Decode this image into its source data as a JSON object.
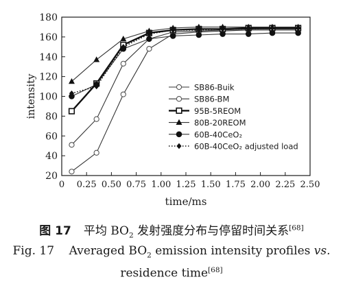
{
  "chart_data": {
    "type": "line",
    "title": "",
    "xlabel": "time/ms",
    "ylabel": "intensity",
    "xlim": [
      0,
      2.5
    ],
    "ylim": [
      20,
      180
    ],
    "xticks": [
      "0",
      "0.25",
      "0.50",
      "0.75",
      "1.00",
      "1.25",
      "1.50",
      "1.75",
      "2.00",
      "2.25",
      "2.50"
    ],
    "yticks": [
      "20",
      "40",
      "60",
      "80",
      "100",
      "120",
      "140",
      "160",
      "180"
    ],
    "grid": false,
    "legend_position": "right",
    "series": [
      {
        "name": "SB86-Buik",
        "marker": "circle-open",
        "line": "solid-thin",
        "x": [
          0.1,
          0.35,
          0.62,
          0.88,
          1.12,
          1.38,
          1.62,
          1.88,
          2.12,
          2.38
        ],
        "y": [
          24,
          43,
          102,
          148,
          163,
          165,
          166,
          167,
          167,
          167
        ]
      },
      {
        "name": "SB86-BM",
        "marker": "circle-open",
        "line": "solid-thin",
        "x": [
          0.1,
          0.35,
          0.62,
          0.88,
          1.12,
          1.38,
          1.62,
          1.88,
          2.12,
          2.38
        ],
        "y": [
          51,
          77,
          133,
          158,
          165,
          166,
          167,
          168,
          168,
          168
        ]
      },
      {
        "name": "95B-5REOM",
        "marker": "square-open",
        "line": "solid-thick",
        "x": [
          0.1,
          0.35,
          0.62,
          0.88,
          1.12,
          1.38,
          1.62,
          1.88,
          2.12,
          2.38
        ],
        "y": [
          85,
          113,
          152,
          164,
          167,
          168,
          168,
          169,
          169,
          169
        ]
      },
      {
        "name": "80B-20REOM",
        "marker": "triangle-filled",
        "line": "solid-thin",
        "x": [
          0.1,
          0.35,
          0.62,
          0.88,
          1.12,
          1.38,
          1.62,
          1.88,
          2.12,
          2.38
        ],
        "y": [
          115,
          137,
          158,
          166,
          169,
          170,
          170,
          170,
          170,
          170
        ]
      },
      {
        "name": "60B-40CeO₂",
        "marker": "circle-filled",
        "line": "solid-thin",
        "x": [
          0.1,
          0.35,
          0.62,
          0.88,
          1.12,
          1.38,
          1.62,
          1.88,
          2.12,
          2.38
        ],
        "y": [
          100,
          112,
          148,
          158,
          161,
          162,
          163,
          163,
          164,
          164
        ]
      },
      {
        "name": "60B-40CeO₂ adjusted load",
        "marker": "diamond-filled",
        "line": "dotted",
        "x": [
          0.1,
          0.35,
          0.62,
          0.88,
          1.12,
          1.38,
          1.62,
          1.88,
          2.12,
          2.38
        ],
        "y": [
          103,
          110,
          150,
          163,
          167,
          167,
          168,
          168,
          169,
          169
        ]
      }
    ]
  },
  "caption": {
    "cn_figno": "图 17",
    "cn_pre": "平均 BO",
    "cn_sub": "2",
    "cn_post": " 发射强度分布与停留时间关系",
    "cn_ref": "[68]",
    "en_pre": "Fig. 17    Averaged BO",
    "en_sub": "2",
    "en_mid": " emission intensity profiles ",
    "en_vs": "vs.",
    "en2_pre": "residence time",
    "en2_ref": "[68]"
  }
}
